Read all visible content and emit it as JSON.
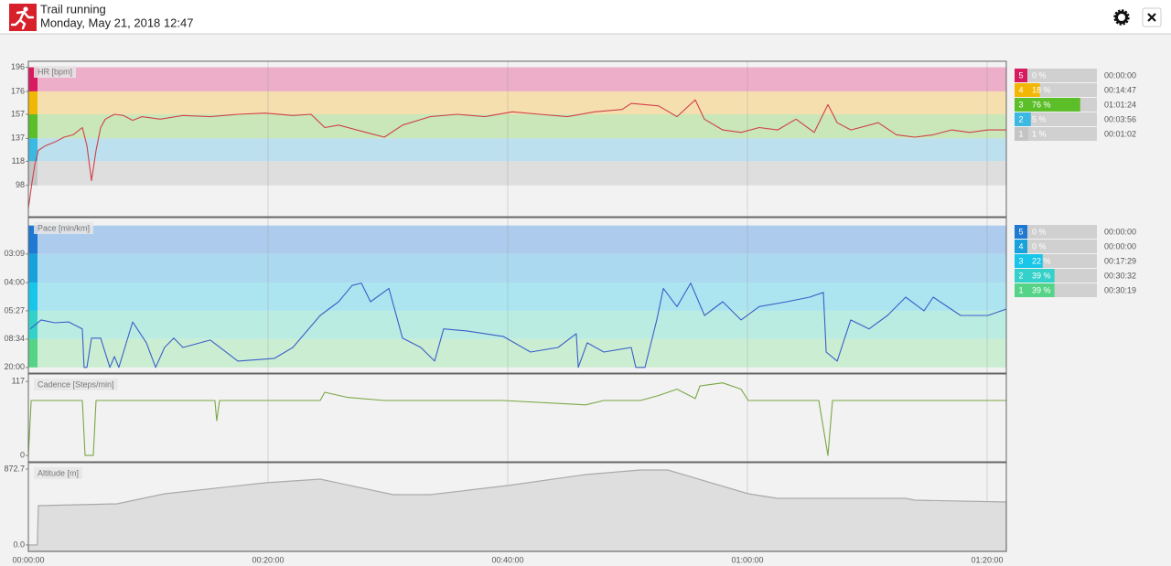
{
  "header": {
    "title": "Trail running",
    "subtitle": "Monday, May 21, 2018 12:47"
  },
  "chart_data": [
    {
      "type": "line",
      "title": "HR [bpm]",
      "color": "#d0404a",
      "x": [
        0,
        18,
        32,
        50,
        87,
        133,
        179,
        224,
        270,
        293,
        316,
        339,
        362,
        385,
        431,
        476,
        522,
        568,
        660,
        774,
        911,
        1049,
        1186,
        1324,
        1415,
        1484,
        1553,
        1690,
        1782,
        1873,
        2011,
        2148,
        2285,
        2423,
        2560,
        2698,
        2835,
        2973,
        3018,
        3155,
        3247,
        3339,
        3384,
        3476,
        3568,
        3659,
        3751,
        3843,
        3934,
        4003,
        4049,
        4118,
        4255,
        4346,
        4438,
        4530,
        4621,
        4713,
        4804,
        4896
      ],
      "values": [
        79,
        100,
        115,
        127,
        131,
        134,
        138,
        140,
        146,
        131,
        102,
        127,
        146,
        153,
        157,
        156,
        152,
        155,
        153,
        156,
        155,
        157,
        158,
        156,
        157,
        146,
        148,
        142,
        138,
        148,
        155,
        157,
        155,
        159,
        157,
        155,
        159,
        161,
        166,
        164,
        155,
        169,
        153,
        144,
        142,
        146,
        144,
        153,
        142,
        165,
        150,
        144,
        150,
        140,
        138,
        140,
        144,
        142,
        144,
        144
      ],
      "ylim": [
        72,
        201
      ],
      "yticks": [
        98,
        118,
        137,
        157,
        176,
        196
      ],
      "zones": [
        {
          "name": "5",
          "color": "#d81b60",
          "band": "#ecaec8",
          "min": 176,
          "max": 196,
          "percent": 0,
          "percent_label": "0 %",
          "time": "00:00:00"
        },
        {
          "name": "4",
          "color": "#f2b705",
          "band": "#f5dfae",
          "min": 157,
          "max": 176,
          "percent": 18,
          "percent_label": "18 %",
          "time": "00:14:47"
        },
        {
          "name": "3",
          "color": "#5cbf2a",
          "band": "#c9e7b8",
          "min": 137,
          "max": 157,
          "percent": 76,
          "percent_label": "76 %",
          "time": "01:01:24"
        },
        {
          "name": "2",
          "color": "#3cb9e2",
          "band": "#bde0ee",
          "min": 118,
          "max": 137,
          "percent": 5,
          "percent_label": "5 %",
          "time": "00:03:56"
        },
        {
          "name": "1",
          "color": "#c4c4c4",
          "band": "#dedede",
          "min": 98,
          "max": 118,
          "percent": 1,
          "percent_label": "1 %",
          "time": "00:01:02"
        }
      ]
    },
    {
      "type": "line",
      "title": "Pace [min/km]",
      "color": "#3b5fc8",
      "scale": "reciprocal",
      "x": [
        9,
        64,
        133,
        202,
        270,
        279,
        293,
        316,
        362,
        408,
        431,
        453,
        522,
        591,
        637,
        682,
        728,
        774,
        911,
        1049,
        1232,
        1324,
        1461,
        1553,
        1621,
        1667,
        1713,
        1805,
        1873,
        1965,
        2034,
        2079,
        2194,
        2377,
        2514,
        2652,
        2743,
        2753,
        2798,
        2881,
        3018,
        3041,
        3087,
        3146,
        3179,
        3247,
        3316,
        3385,
        3476,
        3568,
        3659,
        3797,
        3911,
        3980,
        3994,
        4049,
        4117,
        4209,
        4301,
        4392,
        4484,
        4530,
        4667,
        4804,
        4896
      ],
      "values": [
        7.1,
        6.18,
        6.44,
        6.36,
        7.1,
        20,
        20,
        8.41,
        8.41,
        20,
        13.2,
        20,
        6.36,
        9.26,
        20,
        10.3,
        8.41,
        10.3,
        8.73,
        15.4,
        14.0,
        10.3,
        5.8,
        4.88,
        4.11,
        4.02,
        4.88,
        4.23,
        8.41,
        10.3,
        15.4,
        7.1,
        7.35,
        8.12,
        11.6,
        10.3,
        7.72,
        20,
        9.26,
        11.6,
        10.3,
        20,
        20,
        6.18,
        4.23,
        5.17,
        4.02,
        5.8,
        4.88,
        6.18,
        5.17,
        4.88,
        4.64,
        4.41,
        11.6,
        15.4,
        6.18,
        7.1,
        5.8,
        4.64,
        5.45,
        4.64,
        5.8,
        5.8,
        5.33
      ],
      "ylim": [
        27.3,
        2.48
      ],
      "yticks": [
        {
          "value": 3.15,
          "label": "03:09"
        },
        {
          "value": 4,
          "label": "04:00"
        },
        {
          "value": 5.45,
          "label": "05:27"
        },
        {
          "value": 8.567,
          "label": "08:34"
        },
        {
          "value": 20,
          "label": "20:00"
        }
      ],
      "zones": [
        {
          "name": "5",
          "color": "#1f78d1",
          "band": "#adcbec",
          "min": 2.6,
          "max": 3.15,
          "percent": 0,
          "percent_label": "0 %",
          "time": "00:00:00"
        },
        {
          "name": "4",
          "color": "#18a2dc",
          "band": "#abd9f0",
          "min": 3.15,
          "max": 4,
          "percent": 0,
          "percent_label": "0 %",
          "time": "00:00:00"
        },
        {
          "name": "3",
          "color": "#17c6e8",
          "band": "#ace5f0",
          "min": 4,
          "max": 5.45,
          "percent": 22,
          "percent_label": "22 %",
          "time": "00:17:29"
        },
        {
          "name": "2",
          "color": "#33d1c9",
          "band": "#bbece2",
          "min": 5.45,
          "max": 8.567,
          "percent": 39,
          "percent_label": "39 %",
          "time": "00:30:32"
        },
        {
          "name": "1",
          "color": "#55d488",
          "band": "#cbeed3",
          "min": 8.567,
          "max": 20,
          "percent": 39,
          "percent_label": "39 %",
          "time": "00:30:19"
        }
      ]
    },
    {
      "type": "line",
      "title": "Cadence [Steps/min]",
      "color": "#7aa744",
      "x": [
        0,
        14,
        270,
        284,
        325,
        339,
        934,
        943,
        957,
        1461,
        1484,
        1598,
        1782,
        2377,
        2789,
        2881,
        3064,
        3156,
        3247,
        3339,
        3362,
        3476,
        3568,
        3604,
        3957,
        4003,
        4026,
        4438,
        4896
      ],
      "values": [
        0,
        87,
        87,
        0,
        0,
        87,
        87,
        55,
        87,
        87,
        100,
        92,
        87,
        87,
        80,
        87,
        87,
        95,
        105,
        90,
        110,
        115,
        105,
        87,
        87,
        0,
        87,
        87,
        87
      ],
      "ylim": [
        -10,
        129
      ],
      "yticks": [
        0,
        117
      ]
    },
    {
      "type": "area",
      "title": "Altitude [m]",
      "color": "#aaaaaa",
      "fill": "#dedede",
      "x": [
        0,
        45,
        50,
        444,
        683,
        1186,
        1461,
        1827,
        2011,
        2400,
        2789,
        3064,
        3201,
        3604,
        3751,
        4392,
        4438,
        4896
      ],
      "values": [
        0,
        0,
        452,
        473,
        588,
        715,
        757,
        578,
        578,
        683,
        809,
        862,
        862,
        589,
        536,
        536,
        515,
        494
      ],
      "ylim": [
        -74,
        946
      ],
      "yticks": [
        {
          "value": 0,
          "label": "0.0"
        },
        872.7
      ],
      "xlim": [
        0,
        4896
      ],
      "xticks": [
        {
          "value": 0,
          "label": "00:00:00"
        },
        {
          "value": 1200,
          "label": "00:20:00"
        },
        {
          "value": 2400,
          "label": "00:40:00"
        },
        {
          "value": 3600,
          "label": "01:00:00"
        },
        {
          "value": 4800,
          "label": "01:20:00"
        }
      ]
    }
  ]
}
